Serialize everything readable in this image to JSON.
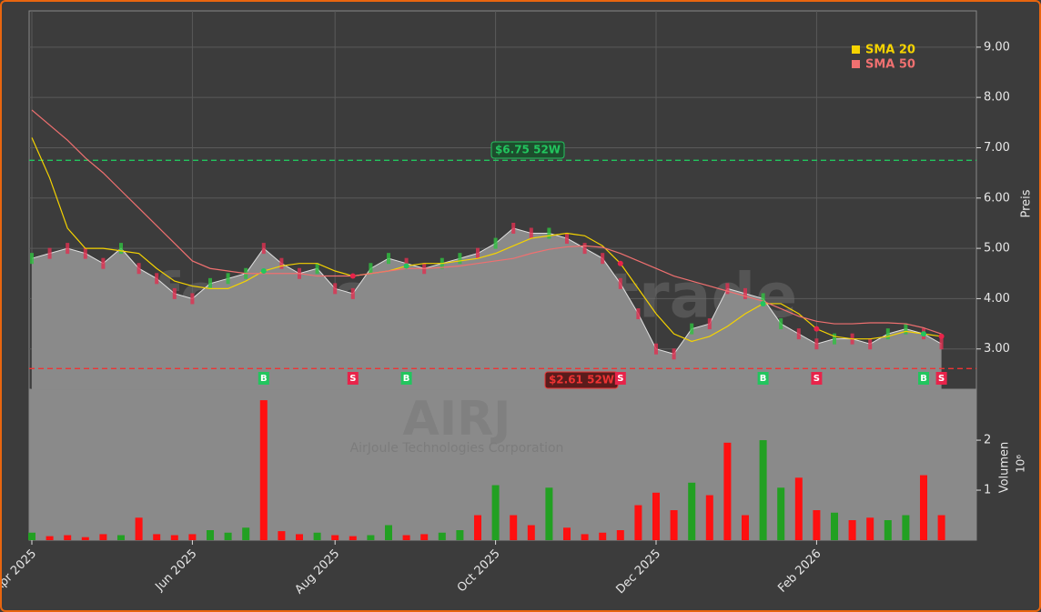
{
  "chart_data": {
    "type": "candlestick-area",
    "ticker": "AIRJ",
    "company": "AirJoule Technologies Corporation",
    "watermark": "forexsignale.trade",
    "ylabel": "Preis",
    "y2label": "Volumen",
    "y2_multiplier": "10⁶",
    "categories": [
      "Apr 2025",
      null,
      null,
      null,
      null,
      null,
      null,
      null,
      null,
      "Jun 2025",
      null,
      null,
      null,
      null,
      null,
      null,
      null,
      "Aug 2025",
      null,
      null,
      null,
      null,
      null,
      null,
      null,
      null,
      "Oct 2025",
      null,
      null,
      null,
      null,
      null,
      null,
      null,
      null,
      "Dec 2025",
      null,
      null,
      null,
      null,
      null,
      null,
      null,
      null,
      "Feb 2026",
      null,
      null,
      null,
      null,
      null,
      null,
      null
    ],
    "values": [
      4.8,
      4.9,
      5.0,
      4.9,
      4.7,
      5.0,
      4.6,
      4.4,
      4.1,
      4.0,
      4.3,
      4.4,
      4.5,
      5.0,
      4.7,
      4.5,
      4.6,
      4.2,
      4.1,
      4.6,
      4.8,
      4.7,
      4.6,
      4.7,
      4.8,
      4.9,
      5.1,
      5.4,
      5.3,
      5.3,
      5.2,
      5.0,
      4.8,
      4.3,
      3.7,
      3.0,
      2.9,
      3.4,
      3.5,
      4.2,
      4.1,
      4.0,
      3.5,
      3.3,
      3.1,
      3.2,
      3.2,
      3.1,
      3.3,
      3.4,
      3.3,
      3.1
    ],
    "series": [
      {
        "name": "SMA 20",
        "color": "#f5d300",
        "values": [
          7.2,
          6.4,
          5.4,
          5.0,
          5.0,
          4.95,
          4.9,
          4.6,
          4.35,
          4.25,
          4.2,
          4.2,
          4.35,
          4.55,
          4.65,
          4.7,
          4.7,
          4.55,
          4.45,
          4.5,
          4.55,
          4.65,
          4.7,
          4.7,
          4.75,
          4.8,
          4.9,
          5.05,
          5.2,
          5.25,
          5.3,
          5.25,
          5.05,
          4.7,
          4.2,
          3.7,
          3.3,
          3.15,
          3.25,
          3.45,
          3.7,
          3.9,
          3.9,
          3.7,
          3.4,
          3.25,
          3.2,
          3.2,
          3.25,
          3.35,
          3.3,
          3.25
        ]
      },
      {
        "name": "SMA 50",
        "color": "#f07070",
        "values": [
          7.75,
          7.45,
          7.15,
          6.8,
          6.5,
          6.15,
          5.8,
          5.45,
          5.1,
          4.75,
          4.6,
          4.55,
          4.5,
          4.5,
          4.5,
          4.5,
          4.45,
          4.45,
          4.45,
          4.5,
          4.55,
          4.6,
          4.6,
          4.62,
          4.65,
          4.7,
          4.75,
          4.8,
          4.9,
          4.98,
          5.03,
          5.05,
          5.02,
          4.9,
          4.75,
          4.6,
          4.45,
          4.35,
          4.25,
          4.15,
          4.05,
          3.95,
          3.8,
          3.65,
          3.55,
          3.5,
          3.5,
          3.52,
          3.52,
          3.5,
          3.42,
          3.3
        ]
      }
    ],
    "volume": {
      "values": [
        0.15,
        0.08,
        0.1,
        0.06,
        0.12,
        0.1,
        0.45,
        0.12,
        0.1,
        0.12,
        0.2,
        0.15,
        0.25,
        2.8,
        0.18,
        0.12,
        0.15,
        0.1,
        0.08,
        0.1,
        0.3,
        0.1,
        0.12,
        0.15,
        0.2,
        0.5,
        1.1,
        0.5,
        0.3,
        1.05,
        0.25,
        0.12,
        0.15,
        0.2,
        0.7,
        0.95,
        0.6,
        1.15,
        0.9,
        1.95,
        0.5,
        2.0,
        1.05,
        1.25,
        0.6,
        0.55,
        0.4,
        0.45,
        0.4,
        0.5,
        1.3,
        0.5
      ],
      "colors": [
        "#22a022",
        "#ff1010",
        "#ff1010",
        "#ff1010",
        "#ff1010",
        "#22a022",
        "#ff1010",
        "#ff1010",
        "#ff1010",
        "#ff1010",
        "#22a022",
        "#22a022",
        "#22a022",
        "#ff1010",
        "#ff1010",
        "#ff1010",
        "#22a022",
        "#ff1010",
        "#ff1010",
        "#22a022",
        "#22a022",
        "#ff1010",
        "#ff1010",
        "#22a022",
        "#22a022",
        "#ff1010",
        "#22a022",
        "#ff1010",
        "#ff1010",
        "#22a022",
        "#ff1010",
        "#ff1010",
        "#ff1010",
        "#ff1010",
        "#ff1010",
        "#ff1010",
        "#ff1010",
        "#22a022",
        "#ff1010",
        "#ff1010",
        "#ff1010",
        "#22a022",
        "#22a022",
        "#ff1010",
        "#ff1010",
        "#22a022",
        "#ff1010",
        "#ff1010",
        "#22a022",
        "#22a022",
        "#ff1010",
        "#ff1010"
      ]
    },
    "signals": [
      null,
      null,
      null,
      null,
      null,
      null,
      null,
      null,
      null,
      null,
      null,
      null,
      null,
      "B",
      null,
      null,
      null,
      null,
      "S",
      null,
      null,
      "B",
      null,
      null,
      null,
      null,
      null,
      null,
      null,
      null,
      null,
      null,
      null,
      "S",
      null,
      null,
      null,
      null,
      null,
      null,
      null,
      "B",
      null,
      null,
      "S",
      null,
      null,
      null,
      null,
      null,
      "B",
      "S"
    ],
    "high_52w": {
      "value": 6.75,
      "label": "$6.75 52W",
      "color": "#22c55e"
    },
    "low_52w": {
      "value": 2.61,
      "label": "$2.61 52W",
      "color": "#ef3333"
    },
    "ylim": [
      2.2,
      9.72
    ],
    "yticks": [
      {
        "value": 3,
        "label": "3.00"
      },
      {
        "value": 4,
        "label": "4.00"
      },
      {
        "value": 5,
        "label": "5.00"
      },
      {
        "value": 6,
        "label": "6.00"
      },
      {
        "value": 7,
        "label": "7.00"
      },
      {
        "value": 8,
        "label": "8.00"
      },
      {
        "value": 9,
        "label": "9.00"
      }
    ],
    "y2lim": [
      0,
      3.02
    ],
    "y2ticks": [
      1,
      2
    ],
    "grid": true,
    "legend": "upper-right"
  }
}
